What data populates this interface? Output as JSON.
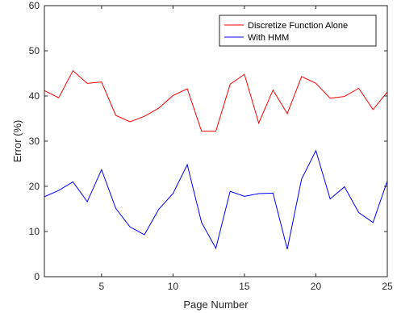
{
  "chart_data": {
    "type": "line",
    "title": "",
    "xlabel": "Page Number",
    "ylabel": "Error (%)",
    "xlim": [
      1,
      25
    ],
    "ylim": [
      0,
      60
    ],
    "xticks": [
      5,
      10,
      15,
      20,
      25
    ],
    "yticks": [
      0,
      10,
      20,
      30,
      40,
      50,
      60
    ],
    "grid": false,
    "legend_position": "top-right",
    "x": [
      1,
      2,
      3,
      4,
      5,
      6,
      7,
      8,
      9,
      10,
      11,
      12,
      13,
      14,
      15,
      16,
      17,
      18,
      19,
      20,
      21,
      22,
      23,
      24,
      25
    ],
    "series": [
      {
        "name": "Discretize Function Alone",
        "color": "#ff0000",
        "values": [
          41.2,
          39.6,
          45.6,
          42.8,
          43.1,
          35.7,
          34.3,
          35.5,
          37.3,
          40.1,
          41.6,
          32.2,
          32.2,
          42.6,
          44.8,
          34.0,
          41.3,
          36.1,
          44.3,
          42.8,
          39.5,
          39.9,
          41.7,
          37.0,
          40.9
        ]
      },
      {
        "name": "With HMM",
        "color": "#0000ff",
        "values": [
          17.7,
          19.1,
          21.0,
          16.6,
          23.7,
          15.1,
          11.0,
          9.3,
          14.9,
          18.4,
          24.8,
          12.0,
          6.3,
          18.9,
          17.8,
          18.4,
          18.5,
          6.1,
          21.6,
          27.9,
          17.2,
          19.9,
          14.2,
          12.0,
          21.2
        ]
      }
    ]
  }
}
